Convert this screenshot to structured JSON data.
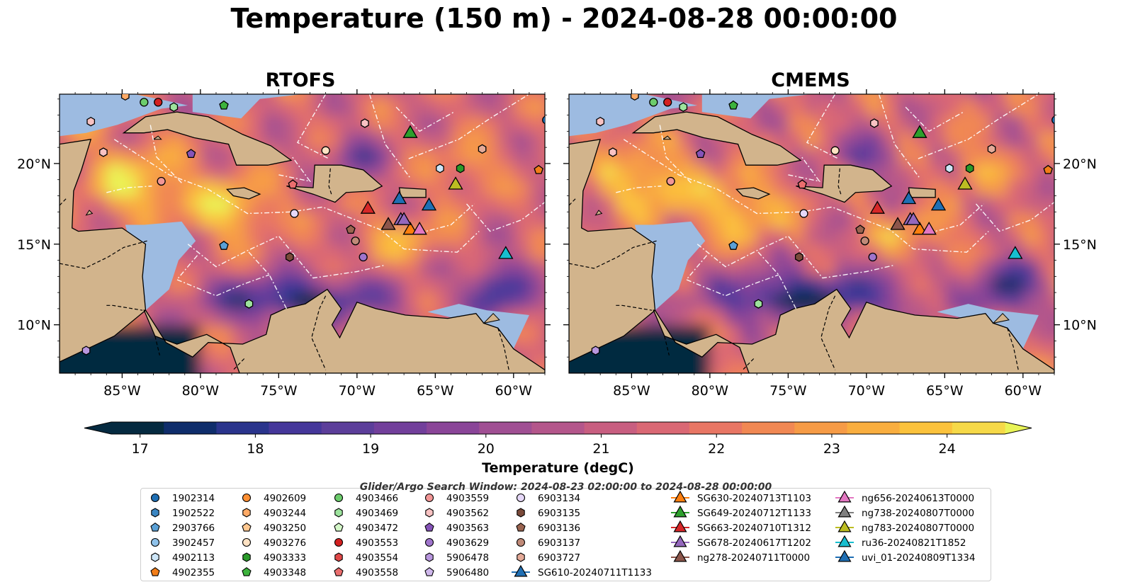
{
  "title": "Temperature (150 m) - 2024-08-28 00:00:00",
  "panels": [
    {
      "title": "RTOFS"
    },
    {
      "title": "CMEMS"
    }
  ],
  "axes": {
    "lon_ticks": [
      "85°W",
      "80°W",
      "75°W",
      "70°W",
      "65°W",
      "60°W"
    ],
    "lat_ticks": [
      "20°N",
      "15°N",
      "10°N"
    ]
  },
  "colorbar": {
    "label": "Temperature (degC)",
    "ticks": [
      "17",
      "18",
      "19",
      "20",
      "21",
      "22",
      "23",
      "24"
    ],
    "range": [
      16.75,
      24.5
    ],
    "extend": "both",
    "colormap": "thermal",
    "colors": [
      "#052a40",
      "#0f2d6b",
      "#2a348c",
      "#45379a",
      "#5c3e9a",
      "#723f9b",
      "#8a4598",
      "#a04f93",
      "#b4568b",
      "#c85e80",
      "#da6874",
      "#e87664",
      "#f18853",
      "#f69b46",
      "#f9ae3f",
      "#fbc23c",
      "#f6d948",
      "#e9f457"
    ]
  },
  "legend": {
    "title": "Glider/Argo Search Window: 2024-08-23 02:00:00 to 2024-08-28 00:00:00",
    "columns": [
      [
        {
          "label": "1902314",
          "marker": "circle",
          "color": "#1f6fb4"
        },
        {
          "label": "1902522",
          "marker": "hexagon",
          "color": "#3a86c2"
        },
        {
          "label": "2903766",
          "marker": "pentagon",
          "color": "#5aa0d6"
        },
        {
          "label": "3902457",
          "marker": "circle",
          "color": "#8fc2ea"
        },
        {
          "label": "4902113",
          "marker": "hexagon",
          "color": "#cde6f8"
        },
        {
          "label": "4902355",
          "marker": "pentagon",
          "color": "#f27d18"
        }
      ],
      [
        {
          "label": "4902609",
          "marker": "circle",
          "color": "#ff8f33"
        },
        {
          "label": "4903244",
          "marker": "hexagon",
          "color": "#ffaa66"
        },
        {
          "label": "4903250",
          "marker": "pentagon",
          "color": "#ffc891"
        },
        {
          "label": "4903276",
          "marker": "circle",
          "color": "#ffe2c3"
        },
        {
          "label": "4903333",
          "marker": "hexagon",
          "color": "#2a9a2a"
        },
        {
          "label": "4903348",
          "marker": "pentagon",
          "color": "#3db33d"
        }
      ],
      [
        {
          "label": "4903466",
          "marker": "circle",
          "color": "#6ccc6c"
        },
        {
          "label": "4903469",
          "marker": "hexagon",
          "color": "#9de39d"
        },
        {
          "label": "4903472",
          "marker": "pentagon",
          "color": "#d4f7c8"
        },
        {
          "label": "4903553",
          "marker": "circle",
          "color": "#d32020"
        },
        {
          "label": "4903554",
          "marker": "hexagon",
          "color": "#e04848"
        },
        {
          "label": "4903558",
          "marker": "pentagon",
          "color": "#ea6e6e"
        }
      ],
      [
        {
          "label": "4903559",
          "marker": "circle",
          "color": "#f29696"
        },
        {
          "label": "4903562",
          "marker": "hexagon",
          "color": "#f8c2c2"
        },
        {
          "label": "4903563",
          "marker": "pentagon",
          "color": "#8553b8"
        },
        {
          "label": "4903629",
          "marker": "circle",
          "color": "#9f74cc"
        },
        {
          "label": "5906478",
          "marker": "hexagon",
          "color": "#b896de"
        },
        {
          "label": "5906480",
          "marker": "pentagon",
          "color": "#cfb8ec"
        }
      ],
      [
        {
          "label": "6903134",
          "marker": "circle",
          "color": "#e6d8f8"
        },
        {
          "label": "6903135",
          "marker": "hexagon",
          "color": "#7a4a3a"
        },
        {
          "label": "6903136",
          "marker": "pentagon",
          "color": "#9a6450"
        },
        {
          "label": "6903137",
          "marker": "circle",
          "color": "#c08a78"
        },
        {
          "label": "6903727",
          "marker": "hexagon",
          "color": "#e4aa98"
        },
        {
          "label": "SG610-20240711T1133",
          "marker": "triangle-line",
          "color": "#1f6fb4"
        }
      ],
      [
        {
          "label": "SG630-20240713T1103",
          "marker": "triangle-line",
          "color": "#ff7f0e"
        },
        {
          "label": "SG649-20240712T1133",
          "marker": "triangle-line",
          "color": "#2ca02c"
        },
        {
          "label": "SG663-20240710T1312",
          "marker": "triangle-line",
          "color": "#d62728"
        },
        {
          "label": "SG678-20240617T1202",
          "marker": "triangle-line",
          "color": "#9467bd"
        },
        {
          "label": "ng278-20240711T0000",
          "marker": "triangle-line",
          "color": "#8c564b"
        }
      ],
      [
        {
          "label": "ng656-20240613T0000",
          "marker": "triangle-line",
          "color": "#e377c2"
        },
        {
          "label": "ng738-20240807T0000",
          "marker": "triangle-line",
          "color": "#7f7f7f"
        },
        {
          "label": "ng783-20240807T0000",
          "marker": "triangle-line",
          "color": "#bcbd22"
        },
        {
          "label": "ru36-20240821T1852",
          "marker": "triangle-line",
          "color": "#17becf"
        },
        {
          "label": "uvi_01-20240809T1334",
          "marker": "triangle-line",
          "color": "#1f6fb4"
        }
      ]
    ]
  },
  "map_colors": {
    "land": "#d2b48c",
    "shelf": "#9dbbe1",
    "coast": "#000000",
    "eez": "#ffffff"
  },
  "markers": {
    "floats": [
      {
        "id": "4903466",
        "lon": -83.6,
        "lat": 23.8,
        "shape": "circle",
        "color": "#6ccc6c"
      },
      {
        "id": "4903553",
        "lon": -82.7,
        "lat": 23.8,
        "shape": "circle",
        "color": "#d32020"
      },
      {
        "id": "4903469",
        "lon": -81.7,
        "lat": 23.5,
        "shape": "hexagon",
        "color": "#9de39d"
      },
      {
        "id": "4903348",
        "lon": -78.5,
        "lat": 23.6,
        "shape": "pentagon",
        "color": "#3db33d"
      },
      {
        "id": "4903562",
        "lon": -87.0,
        "lat": 22.6,
        "shape": "hexagon",
        "color": "#f8c2c2"
      },
      {
        "id": "4903562b",
        "lon": -69.5,
        "lat": 22.5,
        "shape": "hexagon",
        "color": "#f8c2c2"
      },
      {
        "id": "4903276",
        "lon": -72.0,
        "lat": 20.8,
        "shape": "circle",
        "color": "#ffe2c3"
      },
      {
        "id": "4903562c",
        "lon": -86.2,
        "lat": 20.7,
        "shape": "hexagon",
        "color": "#f8c2c2"
      },
      {
        "id": "4903563",
        "lon": -80.6,
        "lat": 20.6,
        "shape": "pentagon",
        "color": "#8553b8"
      },
      {
        "id": "6903727",
        "lon": -62.0,
        "lat": 20.9,
        "shape": "hexagon",
        "color": "#e4aa98"
      },
      {
        "id": "4902113",
        "lon": -64.7,
        "lat": 19.7,
        "shape": "hexagon",
        "color": "#cde6f8"
      },
      {
        "id": "4903333",
        "lon": -63.4,
        "lat": 19.7,
        "shape": "hexagon",
        "color": "#2a9a2a"
      },
      {
        "id": "4902355",
        "lon": -58.4,
        "lat": 19.6,
        "shape": "pentagon",
        "color": "#f27d18"
      },
      {
        "id": "4903559",
        "lon": -82.5,
        "lat": 18.9,
        "shape": "circle",
        "color": "#f29696"
      },
      {
        "id": "4903558",
        "lon": -74.1,
        "lat": 18.7,
        "shape": "pentagon",
        "color": "#ea6e6e"
      },
      {
        "id": "6903134",
        "lon": -74.0,
        "lat": 16.9,
        "shape": "circle",
        "color": "#e6d8f8"
      },
      {
        "id": "6903136",
        "lon": -70.4,
        "lat": 15.9,
        "shape": "pentagon",
        "color": "#9a6450"
      },
      {
        "id": "6903137",
        "lon": -70.1,
        "lat": 15.2,
        "shape": "circle",
        "color": "#c08a78"
      },
      {
        "id": "2903766",
        "lon": -78.5,
        "lat": 14.9,
        "shape": "pentagon",
        "color": "#5aa0d6"
      },
      {
        "id": "6903135",
        "lon": -74.3,
        "lat": 14.2,
        "shape": "hexagon",
        "color": "#7a4a3a"
      },
      {
        "id": "4903629",
        "lon": -69.6,
        "lat": 14.2,
        "shape": "circle",
        "color": "#9f74cc"
      },
      {
        "id": "4903469b",
        "lon": -76.9,
        "lat": 11.3,
        "shape": "hexagon",
        "color": "#9de39d"
      },
      {
        "id": "5906478",
        "lon": -87.3,
        "lat": 8.4,
        "shape": "hexagon",
        "color": "#b896de"
      },
      {
        "id": "1902314",
        "lon": -57.9,
        "lat": 22.7,
        "shape": "circle",
        "color": "#1f6fb4"
      },
      {
        "id": "4903244",
        "lon": -84.8,
        "lat": 24.2,
        "shape": "hexagon",
        "color": "#ffaa66"
      }
    ],
    "gliders": [
      {
        "id": "SG649-20240712T1133",
        "lon": -66.6,
        "lat": 21.9,
        "color": "#2ca02c"
      },
      {
        "id": "ng783-20240807T0000",
        "lon": -63.7,
        "lat": 18.7,
        "color": "#bcbd22"
      },
      {
        "id": "SG610-20240711T1133",
        "lon": -67.3,
        "lat": 17.8,
        "color": "#1f6fb4"
      },
      {
        "id": "uvi_01-20240809T1334",
        "lon": -65.4,
        "lat": 17.4,
        "color": "#1f6fb4"
      },
      {
        "id": "SG663-20240710T1312",
        "lon": -69.3,
        "lat": 17.2,
        "color": "#d62728"
      },
      {
        "id": "ng278-20240711T0000",
        "lon": -68.0,
        "lat": 16.2,
        "color": "#8c564b"
      },
      {
        "id": "SG678-20240617T1202",
        "lon": -67.2,
        "lat": 16.5,
        "color": "#9467bd"
      },
      {
        "id": "SG630-20240713T1103",
        "lon": -66.6,
        "lat": 15.9,
        "color": "#ff7f0e"
      },
      {
        "id": "ng656-20240613T0000",
        "lon": -66.0,
        "lat": 15.9,
        "color": "#e377c2"
      },
      {
        "id": "SG678-b",
        "lon": -67.0,
        "lat": 16.5,
        "color": "#9467bd"
      },
      {
        "id": "ru36-20240821T1852",
        "lon": -60.5,
        "lat": 14.4,
        "color": "#17becf"
      }
    ]
  }
}
